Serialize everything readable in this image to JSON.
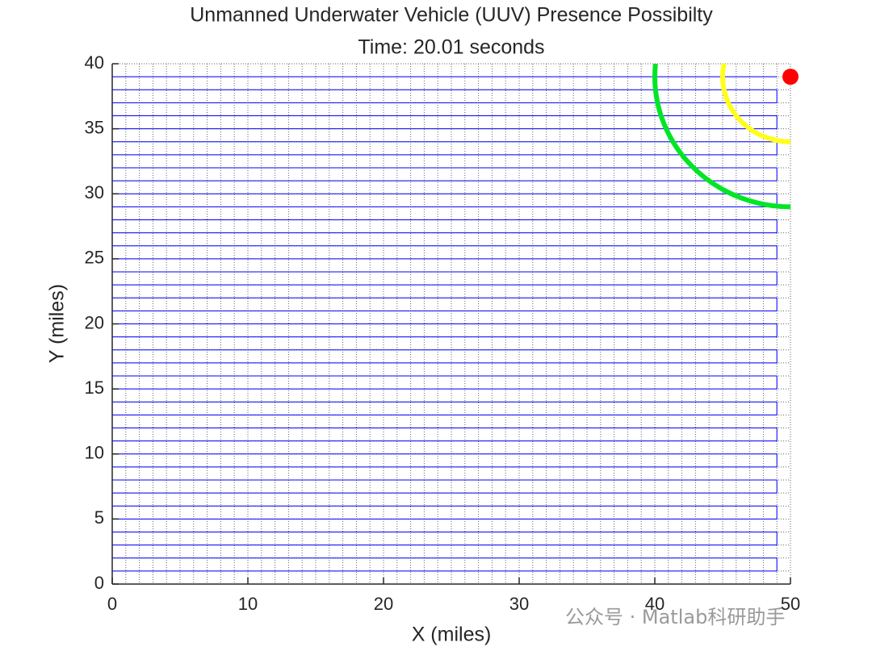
{
  "chart_data": {
    "type": "line",
    "title": "Unmanned Underwater Vehicle (UUV) Presence Possibilty",
    "subtitle": "Time: 20.01 seconds",
    "xlabel": "X (miles)",
    "ylabel": "Y (miles)",
    "watermark": "公众号 · Matlab科研助手",
    "xlim": [
      0,
      50
    ],
    "ylim": [
      0,
      40
    ],
    "xticks": [
      0,
      10,
      20,
      30,
      40,
      50
    ],
    "yticks": [
      0,
      5,
      10,
      15,
      20,
      25,
      30,
      35,
      40
    ],
    "xgrid": [
      0,
      1,
      2,
      3,
      4,
      5,
      6,
      7,
      8,
      9,
      10,
      11,
      12,
      13,
      14,
      15,
      16,
      17,
      18,
      19,
      20,
      21,
      22,
      23,
      24,
      25,
      26,
      27,
      28,
      29,
      30,
      31,
      32,
      33,
      34,
      35,
      36,
      37,
      38,
      39,
      40,
      41,
      42,
      43,
      44,
      45,
      46,
      47,
      48,
      49,
      50
    ],
    "ygrid": [
      0,
      1,
      2,
      3,
      4,
      5,
      6,
      7,
      8,
      9,
      10,
      11,
      12,
      13,
      14,
      15,
      16,
      17,
      18,
      19,
      20,
      21,
      22,
      23,
      24,
      25,
      26,
      27,
      28,
      29,
      30,
      31,
      32,
      33,
      34,
      35,
      36,
      37,
      38,
      39,
      40
    ],
    "series": [
      {
        "color": "#0000ff",
        "x": [
          0,
          49,
          49,
          0,
          0,
          49,
          49,
          0,
          0,
          49,
          49,
          0,
          0,
          49,
          49,
          0,
          0,
          49,
          49,
          0,
          0,
          49,
          49,
          0,
          0,
          49,
          49,
          0,
          0,
          49,
          49,
          0,
          0,
          49,
          49,
          0,
          0,
          49,
          49,
          0,
          0,
          49,
          49,
          0,
          0,
          49,
          49,
          0,
          0,
          49,
          49,
          0,
          0,
          49,
          49,
          0,
          0,
          49,
          49,
          0,
          0,
          49,
          49,
          0,
          0,
          49,
          49,
          0,
          0,
          49,
          49,
          0,
          0,
          49,
          49,
          0,
          0,
          49
        ],
        "values": [
          1,
          1,
          2,
          2,
          3,
          3,
          4,
          4,
          5,
          5,
          6,
          6,
          7,
          7,
          8,
          8,
          9,
          9,
          10,
          10,
          11,
          11,
          12,
          12,
          13,
          13,
          14,
          14,
          15,
          15,
          16,
          16,
          17,
          17,
          18,
          18,
          19,
          19,
          20,
          20,
          21,
          21,
          22,
          22,
          23,
          23,
          24,
          24,
          25,
          25,
          26,
          26,
          27,
          27,
          28,
          28,
          29,
          29,
          30,
          30,
          31,
          31,
          32,
          32,
          33,
          33,
          34,
          34,
          35,
          35,
          36,
          36,
          37,
          37,
          38,
          38,
          39,
          39
        ]
      }
    ],
    "circles": [
      {
        "color": "#00e626",
        "center": [
          50,
          39
        ],
        "radius": 10
      },
      {
        "color": "#ffff1a",
        "center": [
          50,
          39
        ],
        "radius": 5
      }
    ],
    "marker": {
      "color": "#ff0000",
      "x": 50,
      "y": 39
    }
  }
}
